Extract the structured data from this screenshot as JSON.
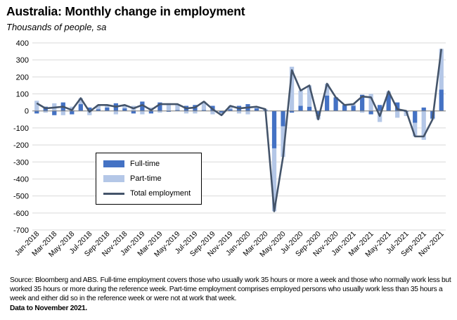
{
  "title": "Australia: Monthly change in employment",
  "subtitle": "Thousands of people, sa",
  "colors": {
    "full_time": "#4472c4",
    "part_time": "#b4c7e7",
    "total": "#44546a",
    "grid": "#d9d9d9"
  },
  "legend": {
    "full_time": "Full-time",
    "part_time": "Part-time",
    "total": "Total employment"
  },
  "note": {
    "source": "Source: Bloomberg and ABS.  Full-time employment covers those who usually work 35 hours or more a week and those who normally work less but worked 35 hours or  more during the reference week.  Part-time employment comprises employed persons who usually work less than 35 hours a week and either did so in the reference week or were not at work that week.",
    "data_to": "Data to November 2021."
  },
  "chart_data": {
    "type": "bar",
    "stacked": true,
    "ylim": [
      -700,
      400
    ],
    "yticks": [
      -700,
      -600,
      -500,
      -400,
      -300,
      -200,
      -100,
      0,
      100,
      200,
      300,
      400
    ],
    "grid": true,
    "legend_position": "lower-left",
    "categories": [
      "Jan-2018",
      "Feb-2018",
      "Mar-2018",
      "Apr-2018",
      "May-2018",
      "Jun-2018",
      "Jul-2018",
      "Aug-2018",
      "Sep-2018",
      "Oct-2018",
      "Nov-2018",
      "Dec-2018",
      "Jan-2019",
      "Feb-2019",
      "Mar-2019",
      "Apr-2019",
      "May-2019",
      "Jun-2019",
      "Jul-2019",
      "Aug-2019",
      "Sep-2019",
      "Oct-2019",
      "Nov-2019",
      "Dec-2019",
      "Jan-2020",
      "Feb-2020",
      "Mar-2020",
      "Apr-2020",
      "May-2020",
      "Jun-2020",
      "Jul-2020",
      "Aug-2020",
      "Sep-2020",
      "Oct-2020",
      "Nov-2020",
      "Dec-2020",
      "Jan-2021",
      "Feb-2021",
      "Mar-2021",
      "Apr-2021",
      "May-2021",
      "Jun-2021",
      "Jul-2021",
      "Aug-2021",
      "Sep-2021",
      "Oct-2021",
      "Nov-2021"
    ],
    "tick_labels": [
      "Jan-2018",
      "Mar-2018",
      "May-2018",
      "Jul-2018",
      "Sep-2018",
      "Nov-2018",
      "Jan-2019",
      "Mar-2019",
      "May-2019",
      "Jul-2019",
      "Sep-2019",
      "Nov-2019",
      "Jan-2020",
      "Mar-2020",
      "May-2020",
      "Jul-2020",
      "Sep-2020",
      "Nov-2020",
      "Jan-2021",
      "Mar-2021",
      "May-2021",
      "Jul-2021",
      "Sep-2021",
      "Nov-2021"
    ],
    "series": [
      {
        "name": "Full-time",
        "type": "bar",
        "values": [
          -15,
          25,
          -25,
          50,
          -20,
          40,
          20,
          10,
          20,
          45,
          15,
          -15,
          55,
          -15,
          50,
          -5,
          5,
          30,
          35,
          5,
          30,
          -10,
          10,
          30,
          40,
          15,
          5,
          -220,
          -90,
          -10,
          30,
          25,
          -30,
          90,
          80,
          35,
          30,
          95,
          -20,
          35,
          100,
          50,
          -5,
          -70,
          20,
          -45,
          125
        ]
      },
      {
        "name": "Part-time",
        "type": "bar",
        "values": [
          60,
          -10,
          45,
          -25,
          25,
          35,
          -25,
          25,
          15,
          -20,
          20,
          30,
          -20,
          20,
          -10,
          45,
          35,
          -15,
          -15,
          50,
          -20,
          -15,
          20,
          -15,
          -20,
          10,
          5,
          -370,
          -180,
          260,
          90,
          125,
          -20,
          70,
          0,
          0,
          10,
          -10,
          100,
          -65,
          15,
          -40,
          -25,
          -80,
          -170,
          -5,
          240
        ]
      },
      {
        "name": "Total employment",
        "type": "line",
        "values": [
          45,
          15,
          20,
          25,
          5,
          75,
          -5,
          35,
          35,
          25,
          35,
          15,
          35,
          5,
          40,
          40,
          40,
          15,
          20,
          55,
          10,
          -25,
          30,
          15,
          20,
          25,
          10,
          -590,
          -270,
          240,
          120,
          150,
          -50,
          160,
          80,
          35,
          40,
          85,
          80,
          -30,
          115,
          10,
          0,
          -150,
          -150,
          -50,
          365
        ]
      }
    ]
  }
}
